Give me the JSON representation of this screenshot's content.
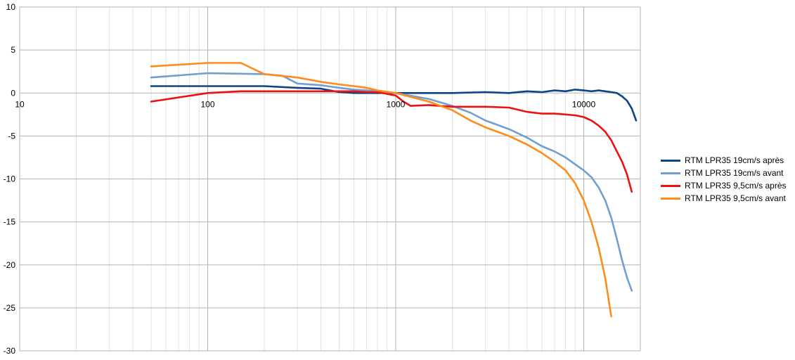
{
  "chart_data": {
    "type": "line",
    "title": "",
    "xlabel": "",
    "ylabel": "",
    "x_scale": "log",
    "xlim": [
      10,
      20000
    ],
    "ylim": [
      -30,
      10
    ],
    "grid": true,
    "legend_position": "right",
    "x_tick_labels": [
      "10",
      "100",
      "1000",
      "10000"
    ],
    "y_tick_labels": [
      "10",
      "5",
      "0",
      "-5",
      "-10",
      "-15",
      "-20",
      "-25",
      "-30"
    ],
    "series": [
      {
        "name": "RTM LPR35 19cm/s après",
        "color": "#0b4586",
        "x": [
          50,
          100,
          200,
          300,
          400,
          500,
          600,
          700,
          800,
          1000,
          1500,
          2000,
          3000,
          4000,
          5000,
          6000,
          7000,
          8000,
          9000,
          10000,
          11000,
          12000,
          13000,
          14000,
          15000,
          16000,
          17000,
          18000,
          19000
        ],
        "y": [
          0.8,
          0.8,
          0.8,
          0.6,
          0.5,
          0.1,
          0.0,
          0.0,
          0.0,
          0.0,
          0.0,
          0.0,
          0.1,
          0.0,
          0.2,
          0.1,
          0.3,
          0.2,
          0.4,
          0.3,
          0.2,
          0.3,
          0.2,
          0.1,
          0.0,
          -0.4,
          -0.9,
          -1.8,
          -3.2
        ]
      },
      {
        "name": "RTM LPR35 19cm/s avant",
        "color": "#729fcf",
        "x": [
          50,
          100,
          200,
          250,
          300,
          400,
          500,
          600,
          700,
          800,
          1000,
          1500,
          2000,
          2500,
          3000,
          4000,
          5000,
          6000,
          7000,
          8000,
          9000,
          10000,
          11000,
          12000,
          13000,
          14000,
          15000,
          16000,
          17000,
          18000
        ],
        "y": [
          1.8,
          2.3,
          2.2,
          2.0,
          1.1,
          0.9,
          0.6,
          0.4,
          0.3,
          0.2,
          0.0,
          -0.7,
          -1.5,
          -2.3,
          -3.2,
          -4.2,
          -5.2,
          -6.2,
          -6.8,
          -7.5,
          -8.3,
          -9.0,
          -9.8,
          -11.0,
          -12.5,
          -14.5,
          -17.0,
          -19.5,
          -21.5,
          -23.0
        ]
      },
      {
        "name": "RTM LPR35 9,5cm/s après",
        "color": "#ee1111",
        "x": [
          50,
          100,
          150,
          200,
          300,
          400,
          500,
          600,
          700,
          800,
          1000,
          1100,
          1200,
          1500,
          2000,
          3000,
          4000,
          5000,
          6000,
          7000,
          8000,
          9000,
          10000,
          11000,
          12000,
          13000,
          14000,
          15000,
          16000,
          17000,
          18000
        ],
        "y": [
          -1.0,
          0.0,
          0.2,
          0.2,
          0.2,
          0.2,
          0.2,
          0.2,
          0.1,
          0.1,
          -0.3,
          -1.0,
          -1.5,
          -1.4,
          -1.6,
          -1.6,
          -1.7,
          -2.2,
          -2.4,
          -2.4,
          -2.5,
          -2.6,
          -2.8,
          -3.2,
          -3.8,
          -4.5,
          -5.5,
          -6.8,
          -8.0,
          -9.5,
          -11.5
        ]
      },
      {
        "name": "RTM LPR35 9,5cm/s avant",
        "color": "#ff8c1a",
        "x": [
          50,
          100,
          150,
          200,
          300,
          400,
          500,
          600,
          700,
          800,
          1000,
          1500,
          2000,
          2500,
          3000,
          4000,
          5000,
          6000,
          7000,
          8000,
          9000,
          10000,
          11000,
          12000,
          13000,
          14000
        ],
        "y": [
          3.1,
          3.5,
          3.5,
          2.2,
          1.8,
          1.3,
          1.0,
          0.8,
          0.6,
          0.3,
          0.0,
          -1.0,
          -2.0,
          -3.2,
          -4.0,
          -5.0,
          -6.0,
          -7.0,
          -8.0,
          -9.0,
          -10.5,
          -12.5,
          -15.0,
          -18.0,
          -21.5,
          -26.0
        ]
      }
    ]
  }
}
